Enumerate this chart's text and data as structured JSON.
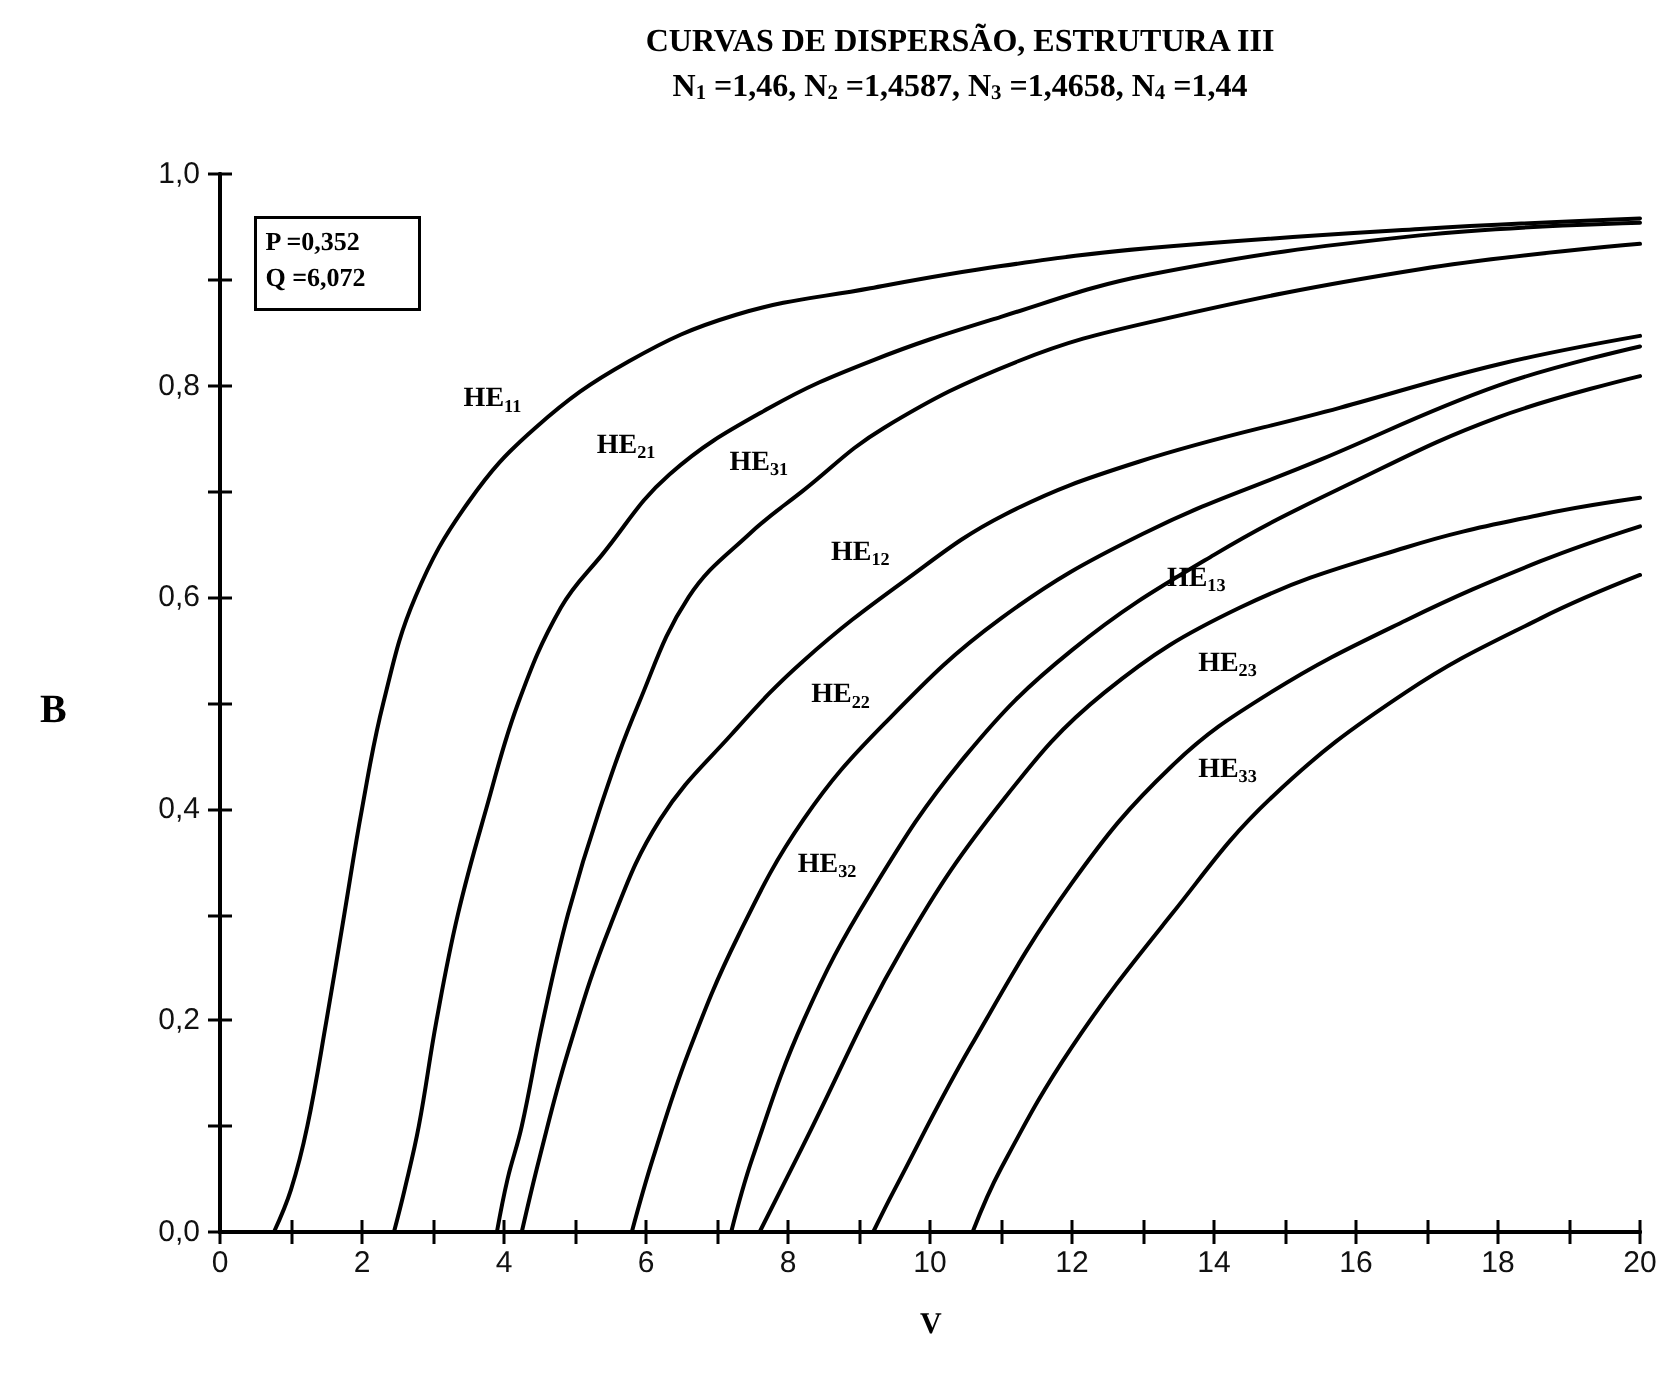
{
  "chart_data": {
    "type": "line",
    "title": "CURVAS DE DISPERSÃO, ESTRUTURA III",
    "subtitle": "N$_{1}$ =1,46, N$_{2}$ =1,4587, N$_{3}$ =1,4658, N$_{4}$ =1,44",
    "xlabel": "V",
    "ylabel": "B",
    "xlim": [
      0,
      20
    ],
    "ylim": [
      0,
      1
    ],
    "xticks": [
      0,
      {
        "value": 1,
        "label": null
      },
      2,
      {
        "value": 3,
        "label": null
      },
      4,
      {
        "value": 5,
        "label": null
      },
      6,
      {
        "value": 7,
        "label": null
      },
      8,
      {
        "value": 9,
        "label": null
      },
      10,
      {
        "value": 11,
        "label": null
      },
      12,
      {
        "value": 13,
        "label": null
      },
      14,
      {
        "value": 15,
        "label": null
      },
      16,
      {
        "value": 17,
        "label": null
      },
      18,
      {
        "value": 19,
        "label": null
      },
      20
    ],
    "yticks": [
      {
        "value": 0,
        "label": "0,0"
      },
      {
        "value": 0.1,
        "label": null
      },
      {
        "value": 0.2,
        "label": "0,2"
      },
      {
        "value": 0.3,
        "label": null
      },
      {
        "value": 0.4,
        "label": "0,4"
      },
      {
        "value": 0.5,
        "label": null
      },
      {
        "value": 0.6,
        "label": "0,6"
      },
      {
        "value": 0.7,
        "label": null
      },
      {
        "value": 0.8,
        "label": "0,8"
      },
      {
        "value": 0.9,
        "label": null
      },
      {
        "value": 1,
        "label": "1,0"
      }
    ],
    "marker": "none",
    "line_style": "solid",
    "series": [
      {
        "color": "#000000",
        "x": [
          0.76,
          1.0,
          1.23,
          1.5,
          1.75,
          2.0,
          2.3,
          2.75,
          3.5,
          4.44,
          5.76,
          7.27,
          9.16,
          11,
          13.1,
          16.9,
          20
        ],
        "values": [
          0,
          0.04,
          0.1,
          0.2,
          0.3,
          0.4,
          0.5,
          0.6,
          0.69,
          0.76,
          0.823,
          0.867,
          0.892,
          0.913,
          0.93,
          0.948,
          0.958
        ]
      },
      {
        "color": "#000000",
        "x": [
          2.45,
          2.6,
          2.8,
          3.05,
          3.35,
          3.75,
          4.2,
          4.8,
          5.38,
          6.33,
          7.74,
          9.16,
          11,
          13.1,
          16.9,
          20
        ],
        "values": [
          0,
          0.04,
          0.1,
          0.2,
          0.3,
          0.4,
          0.5,
          0.59,
          0.64,
          0.716,
          0.779,
          0.823,
          0.865,
          0.905,
          0.942,
          0.954
        ]
      },
      {
        "color": "#000000",
        "x": [
          3.9,
          4.05,
          4.25,
          4.55,
          4.9,
          5.35,
          5.9,
          6.6,
          7.46,
          8.2,
          9.35,
          11.24,
          13.1,
          16.9,
          20
        ],
        "values": [
          0,
          0.05,
          0.1,
          0.2,
          0.3,
          0.4,
          0.5,
          0.6,
          0.66,
          0.7,
          0.76,
          0.823,
          0.86,
          0.91,
          0.934
        ]
      },
      {
        "color": "#000000",
        "x": [
          4.25,
          4.5,
          4.9,
          5.5,
          6.2,
          7.2,
          8.22,
          9.63,
          11.05,
          12.94,
          15.77,
          18,
          20
        ],
        "values": [
          0,
          0.07,
          0.17,
          0.29,
          0.39,
          0.47,
          0.54,
          0.615,
          0.678,
          0.728,
          0.779,
          0.82,
          0.847
        ]
      },
      {
        "color": "#000000",
        "x": [
          5.8,
          6.1,
          6.6,
          7.3,
          8.22,
          9.35,
          11,
          13,
          15.5,
          18,
          20
        ],
        "values": [
          0,
          0.07,
          0.17,
          0.28,
          0.39,
          0.48,
          0.58,
          0.66,
          0.73,
          0.8,
          0.837
        ]
      },
      {
        "color": "#000000",
        "x": [
          7.2,
          7.5,
          8.22,
          9.16,
          10.5,
          12,
          14,
          16,
          18,
          20
        ],
        "values": [
          0,
          0.07,
          0.2,
          0.32,
          0.45,
          0.55,
          0.64,
          0.71,
          0.77,
          0.809
        ]
      },
      {
        "color": "#000000",
        "x": [
          7.6,
          8.2,
          9.63,
          11.05,
          12.46,
          14.36,
          16.7,
          18.6,
          20
        ],
        "values": [
          0,
          0.08,
          0.27,
          0.41,
          0.51,
          0.59,
          0.647,
          0.678,
          0.694
        ]
      },
      {
        "color": "#000000",
        "x": [
          9.2,
          9.5,
          10.57,
          12.0,
          13.4,
          14.8,
          16.7,
          18.6,
          20
        ],
        "values": [
          0,
          0.04,
          0.175,
          0.33,
          0.44,
          0.51,
          0.578,
          0.634,
          0.667
        ]
      },
      {
        "color": "#000000",
        "x": [
          10.6,
          11,
          12,
          13.4,
          14.8,
          16.7,
          18.6,
          20
        ],
        "values": [
          0,
          0.06,
          0.175,
          0.3,
          0.41,
          0.51,
          0.58,
          0.621
        ]
      }
    ],
    "annotations": [
      "P =0,352",
      "Q =6,072",
      {
        "text": "HE$_{11}$",
        "x": 4.44,
        "y": 0.76
      },
      {
        "text": "HE$_{21}$",
        "x": 6.33,
        "y": 0.716
      },
      {
        "text": "HE$_{31}$",
        "x": 8.2,
        "y": 0.7
      },
      {
        "text": "HE$_{12}$",
        "x": 9.63,
        "y": 0.615
      },
      {
        "text": "HE$_{22}$",
        "x": 9.35,
        "y": 0.48
      },
      {
        "text": "HE$_{32}$",
        "x": 9.16,
        "y": 0.32
      },
      {
        "text": "HE$_{13}$",
        "x": 14.36,
        "y": 0.59
      },
      {
        "text": "HE$_{23}$",
        "x": 14.8,
        "y": 0.51
      },
      {
        "text": "HE$_{33}$",
        "x": 14.8,
        "y": 0.41
      }
    ]
  }
}
